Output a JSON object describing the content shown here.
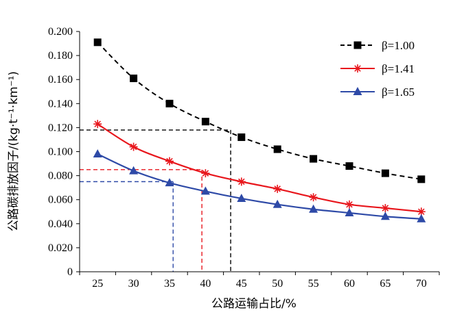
{
  "chart_data": {
    "type": "line",
    "title": "",
    "xlabel": "公路运输占比/%",
    "ylabel": "公路碳排放因子/(kg·t⁻¹·km⁻¹)",
    "x": [
      25,
      30,
      35,
      40,
      45,
      50,
      55,
      60,
      65,
      70
    ],
    "x_tick_labels": [
      "25",
      "30",
      "35",
      "40",
      "45",
      "50",
      "55",
      "60",
      "65",
      "70"
    ],
    "xlim": [
      22.5,
      72.5
    ],
    "ylim": [
      0,
      0.2
    ],
    "y_ticks": [
      0,
      0.02,
      0.04,
      0.06,
      0.08,
      0.1,
      0.12,
      0.14,
      0.16,
      0.18,
      0.2
    ],
    "y_tick_labels": [
      "0",
      "0.020",
      "0.040",
      "0.060",
      "0.080",
      "0.100",
      "0.120",
      "0.140",
      "0.160",
      "0.180",
      "0.200"
    ],
    "legend_position": "top-right",
    "series": [
      {
        "name": "β=1.00",
        "color": "#000000",
        "line_style": "dashed",
        "marker": "square",
        "values": [
          0.191,
          0.161,
          0.14,
          0.125,
          0.112,
          0.102,
          0.094,
          0.088,
          0.082,
          0.077
        ]
      },
      {
        "name": "β=1.41",
        "color": "#e8161c",
        "line_style": "solid",
        "marker": "asterisk",
        "values": [
          0.123,
          0.104,
          0.092,
          0.082,
          0.075,
          0.069,
          0.062,
          0.056,
          0.053,
          0.05
        ]
      },
      {
        "name": "β=1.65",
        "color": "#2e4aa7",
        "line_style": "solid",
        "marker": "triangle",
        "values": [
          0.098,
          0.084,
          0.074,
          0.067,
          0.061,
          0.056,
          0.052,
          0.049,
          0.046,
          0.044
        ]
      }
    ],
    "reference_lines": [
      {
        "series": "β=1.00",
        "color": "#000000",
        "x": 43.5,
        "y": 0.118
      },
      {
        "series": "β=1.41",
        "color": "#e8161c",
        "x": 39.5,
        "y": 0.085
      },
      {
        "series": "β=1.65",
        "color": "#2e4aa7",
        "x": 35.5,
        "y": 0.075
      }
    ]
  }
}
